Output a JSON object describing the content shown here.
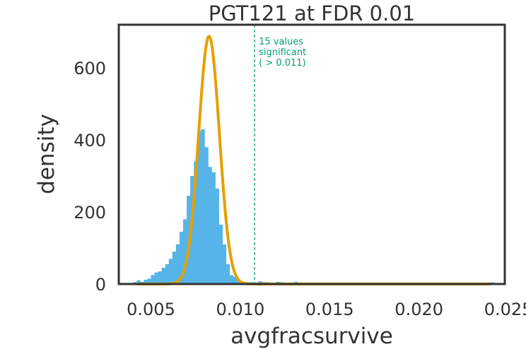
{
  "chart_data": {
    "type": "bar",
    "title": "PGT121 at FDR 0.01",
    "xlabel": "avgfracsurvive",
    "ylabel": "density",
    "xlim": [
      0.0032,
      0.0248
    ],
    "ylim": [
      0,
      720
    ],
    "xticks": [
      {
        "value": 0.005,
        "label": "0.005"
      },
      {
        "value": 0.01,
        "label": "0.010"
      },
      {
        "value": 0.015,
        "label": "0.015"
      },
      {
        "value": 0.02,
        "label": "0.020"
      },
      {
        "value": 0.025,
        "label": "0.025"
      }
    ],
    "yticks": [
      {
        "value": 0,
        "label": "0"
      },
      {
        "value": 200,
        "label": "200"
      },
      {
        "value": 400,
        "label": "400"
      },
      {
        "value": 600,
        "label": "600"
      }
    ],
    "grid": false,
    "histogram": {
      "name": "",
      "color": "#56B4E9",
      "bin_width": 0.0002,
      "bins_start": [
        0.004,
        0.0042,
        0.0044,
        0.0046,
        0.0048,
        0.005,
        0.0052,
        0.0054,
        0.0056,
        0.0058,
        0.006,
        0.0062,
        0.0064,
        0.0066,
        0.0068,
        0.007,
        0.0072,
        0.0074,
        0.0076,
        0.0078,
        0.008,
        0.0082,
        0.0084,
        0.0086,
        0.0088,
        0.009,
        0.0092,
        0.0094,
        0.0096,
        0.0098,
        0.01,
        0.0102,
        0.0104,
        0.0106,
        0.011,
        0.0112,
        0.0114,
        0.012,
        0.0122,
        0.013,
        0.024
      ],
      "density": [
        5,
        10,
        6,
        12,
        15,
        25,
        32,
        35,
        45,
        55,
        70,
        90,
        110,
        145,
        180,
        245,
        300,
        340,
        425,
        430,
        380,
        325,
        310,
        265,
        165,
        110,
        55,
        25,
        20,
        10,
        6,
        5,
        5,
        5,
        8,
        5,
        5,
        6,
        5,
        6,
        5
      ]
    },
    "fit_curve": {
      "type": "gaussian",
      "color": "#E69F00",
      "mean": 0.00825,
      "sd": 0.00058,
      "peak_density": 688
    },
    "threshold": {
      "value": 0.0108,
      "color": "#009E73",
      "style": "dashed",
      "annotation": [
        "15 values",
        "significant",
        "( > 0.011)"
      ]
    }
  }
}
